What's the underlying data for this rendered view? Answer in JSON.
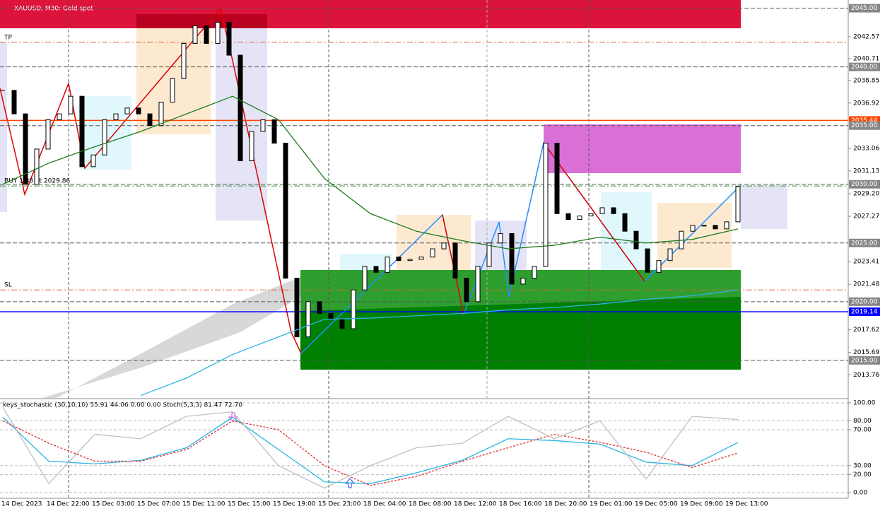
{
  "chart_data": [
    {
      "type": "candlestick",
      "title": "XAUUSD, M30: Gold spot",
      "closes": [
        2038,
        2036,
        2030,
        2033,
        2035.5,
        2036,
        2037.5,
        2031.5,
        2032.5,
        2035.5,
        2036,
        2036.5,
        2036,
        2035,
        2037,
        2039,
        2042,
        2043.5,
        2042,
        2043.8,
        2041,
        2032,
        2034.5,
        2035.5,
        2033.5,
        2022,
        2017,
        2020,
        2019,
        2018.5,
        2017.7,
        2021,
        2023,
        2022.5,
        2023.8,
        2023.5,
        2023.6,
        2023.8,
        2024.5,
        2025,
        2022,
        2020,
        2023,
        2025,
        2025.8,
        2021.5,
        2022,
        2023,
        2033.5,
        2027.5,
        2027,
        2027.3,
        2027.5,
        2028,
        2027.5,
        2026,
        2024.5,
        2022.5,
        2023.5,
        2024.5,
        2026,
        2026.5,
        2026.5,
        2026.2,
        2026.8,
        2029.8
      ],
      "series": [
        {
          "color": "#1e7b1e",
          "values": [
            2030,
            2031.8,
            2033.2,
            2034.5,
            2036,
            2037.5,
            2035.5,
            2030.5,
            2027.5,
            2026,
            2025.2,
            2024.5,
            2024.8,
            2025.5,
            2025,
            2025.3,
            2026.2
          ]
        },
        {
          "color": "#2ab4e6",
          "values": [
            null,
            null,
            null,
            2012,
            2013.5,
            2015.5,
            2017,
            2018.5,
            2018.6,
            2018.8,
            2019,
            2019.3,
            2019.5,
            2019.8,
            2020.2,
            2020.5,
            2021
          ]
        }
      ],
      "ylim": [
        2011.8,
        2045.7
      ],
      "yticks": [
        {
          "value": 2042.57,
          "label": "2042.57"
        },
        {
          "value": 2040.71,
          "label": "2040.71"
        },
        {
          "value": 2038.85,
          "label": "2038.85"
        },
        {
          "value": 2036.92,
          "label": "2036.92"
        },
        {
          "value": 2033.06,
          "label": "2033.06"
        },
        {
          "value": 2031.13,
          "label": "2031.13"
        },
        {
          "value": 2029.2,
          "label": "2029.20"
        },
        {
          "value": 2027.27,
          "label": "2027.27"
        },
        {
          "value": 2023.41,
          "label": "2023.41"
        },
        {
          "value": 2021.48,
          "label": "2021.48"
        },
        {
          "value": 2017.62,
          "label": "2017.62"
        },
        {
          "value": 2015.69,
          "label": "2015.69"
        },
        {
          "value": 2013.76,
          "label": "2013.76"
        }
      ],
      "levels": [
        {
          "value": 2045,
          "label": "2045.00",
          "color": "#888888"
        },
        {
          "value": 2040,
          "label": "2040.00",
          "color": "#888888"
        },
        {
          "value": 2035.44,
          "label": "2035.44",
          "color": "#ff4500"
        },
        {
          "value": 2035,
          "label": "2035.00",
          "color": "#888888"
        },
        {
          "value": 2030,
          "label": "2030.00",
          "color": "#888888"
        },
        {
          "value": 2025,
          "label": "2025.00",
          "color": "#888888"
        },
        {
          "value": 2020,
          "label": "2020.00",
          "color": "#888888"
        },
        {
          "value": 2019.14,
          "label": "2019.14",
          "color": "#0000ff"
        },
        {
          "value": 2015,
          "label": "2015.00",
          "color": "#888888"
        }
      ],
      "orders": [
        {
          "label": "TP",
          "value": 2042.1,
          "color": "#e0603a"
        },
        {
          "label": "BUY 1.38 at 2029.86",
          "value": 2029.86,
          "color": "#3a9a3a"
        },
        {
          "label": "SL",
          "value": 2021.0,
          "color": "#e0603a"
        }
      ],
      "time_labels": [
        "14 Dec 2023",
        "14 Dec 22:00",
        "15 Dec 03:00",
        "15 Dec 07:00",
        "15 Dec 11:00",
        "15 Dec 15:00",
        "15 Dec 19:00",
        "15 Dec 23:00",
        "18 Dec 04:00",
        "18 Dec 08:00",
        "18 Dec 12:00",
        "18 Dec 16:00",
        "18 Dec 20:00",
        "19 Dec 01:00",
        "19 Dec 05:00",
        "19 Dec 09:00",
        "19 Dec 13:00"
      ]
    },
    {
      "type": "line",
      "title": "keys_stochastic (30,10,10) 55.91 44.06 0.00 0.00 Stoch(5,3,3) 81.47 72.70",
      "series": [
        {
          "color": "#2ab4e6",
          "values": [
            84,
            35,
            32,
            36,
            50,
            84,
            48,
            12,
            10,
            22,
            36,
            60,
            58,
            54,
            34,
            30,
            55.91
          ]
        },
        {
          "color": "#e03030",
          "dash": true,
          "values": [
            80,
            55,
            35,
            35,
            48,
            80,
            70,
            30,
            8,
            18,
            35,
            50,
            65,
            56,
            45,
            28,
            44.06
          ]
        },
        {
          "color": "#c0c0c0",
          "values": [
            95,
            10,
            65,
            60,
            85,
            90,
            30,
            5,
            30,
            50,
            55,
            85,
            60,
            80,
            15,
            85,
            81.47
          ]
        }
      ],
      "ylim": [
        -6.3,
        103.9
      ],
      "yticks": [
        {
          "value": 100,
          "label": "100.00"
        },
        {
          "value": 80,
          "label": "80.00"
        },
        {
          "value": 70,
          "label": "70.00"
        },
        {
          "value": 30,
          "label": "30.00"
        },
        {
          "value": 20,
          "label": "20.00"
        },
        {
          "value": 0,
          "label": "0.00"
        }
      ]
    }
  ]
}
